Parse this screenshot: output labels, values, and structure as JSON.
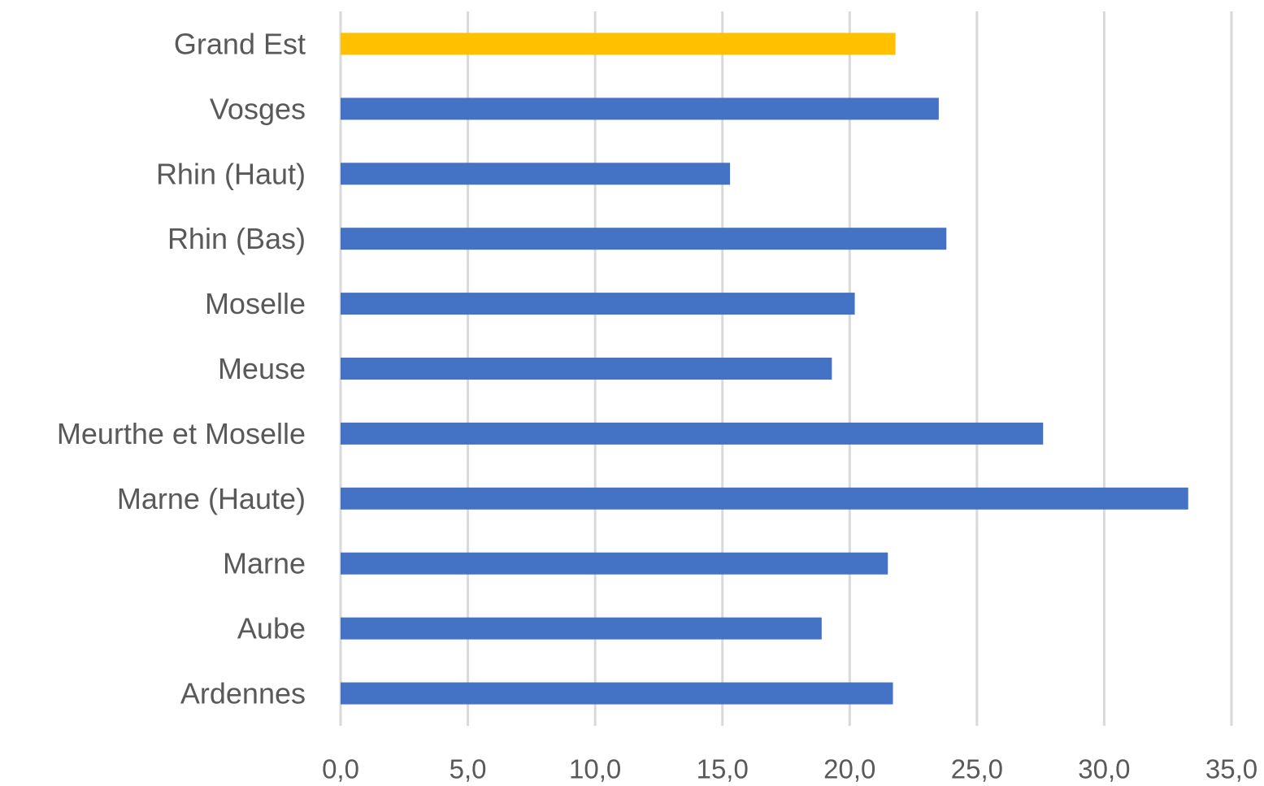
{
  "chart_data": {
    "type": "bar",
    "orientation": "horizontal",
    "categories": [
      "Grand Est",
      "Vosges",
      "Rhin (Haut)",
      "Rhin (Bas)",
      "Moselle",
      "Meuse",
      "Meurthe et Moselle",
      "Marne (Haute)",
      "Marne",
      "Aube",
      "Ardennes"
    ],
    "values": [
      21.8,
      23.5,
      15.3,
      23.8,
      20.2,
      19.3,
      27.6,
      33.3,
      21.5,
      18.9,
      21.7
    ],
    "highlight_category": "Grand Est",
    "xlim": [
      0,
      35
    ],
    "xticks": [
      0,
      5,
      10,
      15,
      20,
      25,
      30,
      35
    ],
    "xtick_labels": [
      "0,0",
      "5,0",
      "10,0",
      "15,0",
      "20,0",
      "25,0",
      "30,0",
      "35,0"
    ],
    "grid": "vertical",
    "legend": "none",
    "colors": {
      "bar": "#4472c4",
      "highlight": "#ffc000",
      "grid": "#d9d9d9",
      "text": "#595959"
    }
  }
}
